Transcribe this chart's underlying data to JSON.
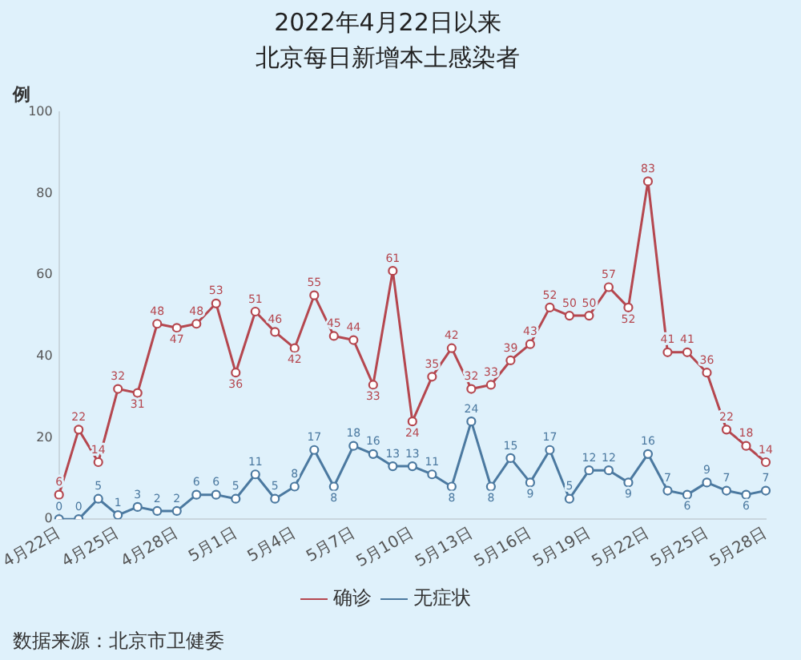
{
  "chart_data": {
    "type": "line",
    "title": "2022年4月22日以来",
    "subtitle": "北京每日新增本土感染者",
    "ylabel": "例",
    "categories": [
      "4月22日",
      null,
      null,
      "4月25日",
      null,
      null,
      "4月28日",
      null,
      null,
      "5月1日",
      null,
      null,
      "5月4日",
      null,
      null,
      "5月7日",
      null,
      null,
      "5月10日",
      null,
      null,
      "5月13日",
      null,
      null,
      "5月16日",
      null,
      null,
      "5月19日",
      null,
      null,
      "5月22日",
      null,
      null,
      "5月25日",
      null,
      null,
      "5月28日"
    ],
    "series": [
      {
        "name": "确诊",
        "color": "#b5474f",
        "values": [
          6,
          22,
          14,
          32,
          31,
          48,
          47,
          48,
          53,
          36,
          51,
          46,
          42,
          55,
          45,
          44,
          33,
          61,
          24,
          35,
          42,
          32,
          33,
          39,
          43,
          52,
          50,
          50,
          57,
          52,
          83,
          41,
          41,
          36,
          22,
          18,
          14
        ]
      },
      {
        "name": "无症状",
        "color": "#4b79a0",
        "values": [
          0,
          0,
          5,
          1,
          3,
          2,
          2,
          6,
          6,
          5,
          11,
          5,
          8,
          17,
          8,
          18,
          16,
          13,
          13,
          11,
          8,
          24,
          8,
          15,
          9,
          17,
          5,
          12,
          12,
          9,
          16,
          7,
          6,
          9,
          7,
          6,
          7
        ]
      }
    ],
    "ylim": [
      0,
      100
    ],
    "yticks": [
      0,
      20,
      40,
      60,
      80,
      100
    ],
    "grid": false,
    "legend": "bottom",
    "marker": "circle",
    "line_style": "solid",
    "data_labels": true,
    "annotations": [
      "数据来源：北京市卫健委"
    ]
  }
}
